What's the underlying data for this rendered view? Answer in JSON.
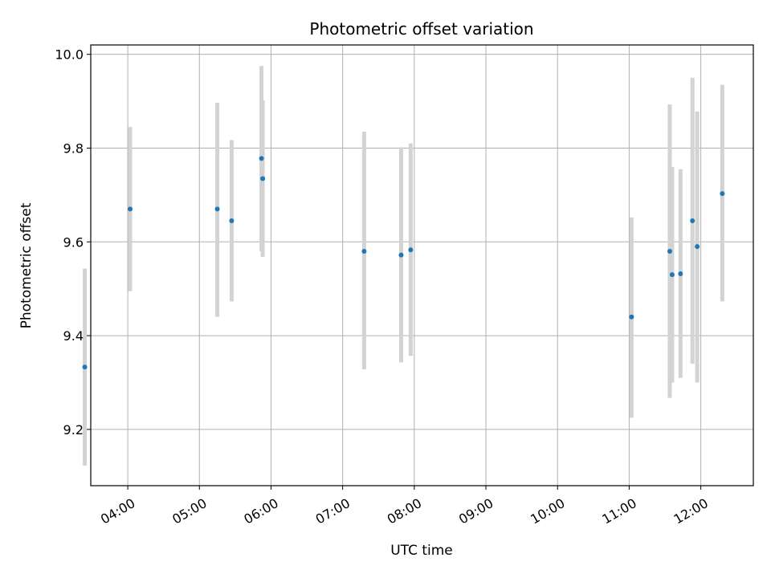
{
  "chart_data": {
    "type": "scatter",
    "title": "Photometric offset variation",
    "xlabel": "UTC time",
    "ylabel": "Photometric offset",
    "x_ticks": [
      "04:00",
      "05:00",
      "06:00",
      "07:00",
      "08:00",
      "09:00",
      "10:00",
      "11:00",
      "12:00"
    ],
    "y_ticks": [
      "9.2",
      "9.4",
      "9.6",
      "9.8",
      "10.0"
    ],
    "xlim": [
      "03:29",
      "12:44"
    ],
    "ylim": [
      9.08,
      10.02
    ],
    "grid": true,
    "colors": {
      "point": "#1f77b4",
      "errorbar": "#d3d3d3",
      "grid": "#b0b0b0"
    },
    "points": [
      {
        "x": "03:24",
        "y": 9.333,
        "low": 9.123,
        "high": 9.543
      },
      {
        "x": "04:02",
        "y": 9.67,
        "low": 9.495,
        "high": 9.845
      },
      {
        "x": "05:15",
        "y": 9.67,
        "low": 9.44,
        "high": 9.897
      },
      {
        "x": "05:27",
        "y": 9.645,
        "low": 9.473,
        "high": 9.817
      },
      {
        "x": "05:52",
        "y": 9.778,
        "low": 9.58,
        "high": 9.975
      },
      {
        "x": "05:53",
        "y": 9.735,
        "low": 9.568,
        "high": 9.902
      },
      {
        "x": "07:18",
        "y": 9.58,
        "low": 9.328,
        "high": 9.835
      },
      {
        "x": "07:49",
        "y": 9.572,
        "low": 9.343,
        "high": 9.802
      },
      {
        "x": "07:57",
        "y": 9.583,
        "low": 9.357,
        "high": 9.81
      },
      {
        "x": "11:02",
        "y": 9.44,
        "low": 9.225,
        "high": 9.652
      },
      {
        "x": "11:34",
        "y": 9.58,
        "low": 9.267,
        "high": 9.893
      },
      {
        "x": "11:36",
        "y": 9.53,
        "low": 9.3,
        "high": 9.76
      },
      {
        "x": "11:43",
        "y": 9.532,
        "low": 9.31,
        "high": 9.755
      },
      {
        "x": "11:53",
        "y": 9.645,
        "low": 9.34,
        "high": 9.95
      },
      {
        "x": "11:57",
        "y": 9.59,
        "low": 9.3,
        "high": 9.878
      },
      {
        "x": "12:18",
        "y": 9.703,
        "low": 9.473,
        "high": 9.935
      }
    ]
  }
}
